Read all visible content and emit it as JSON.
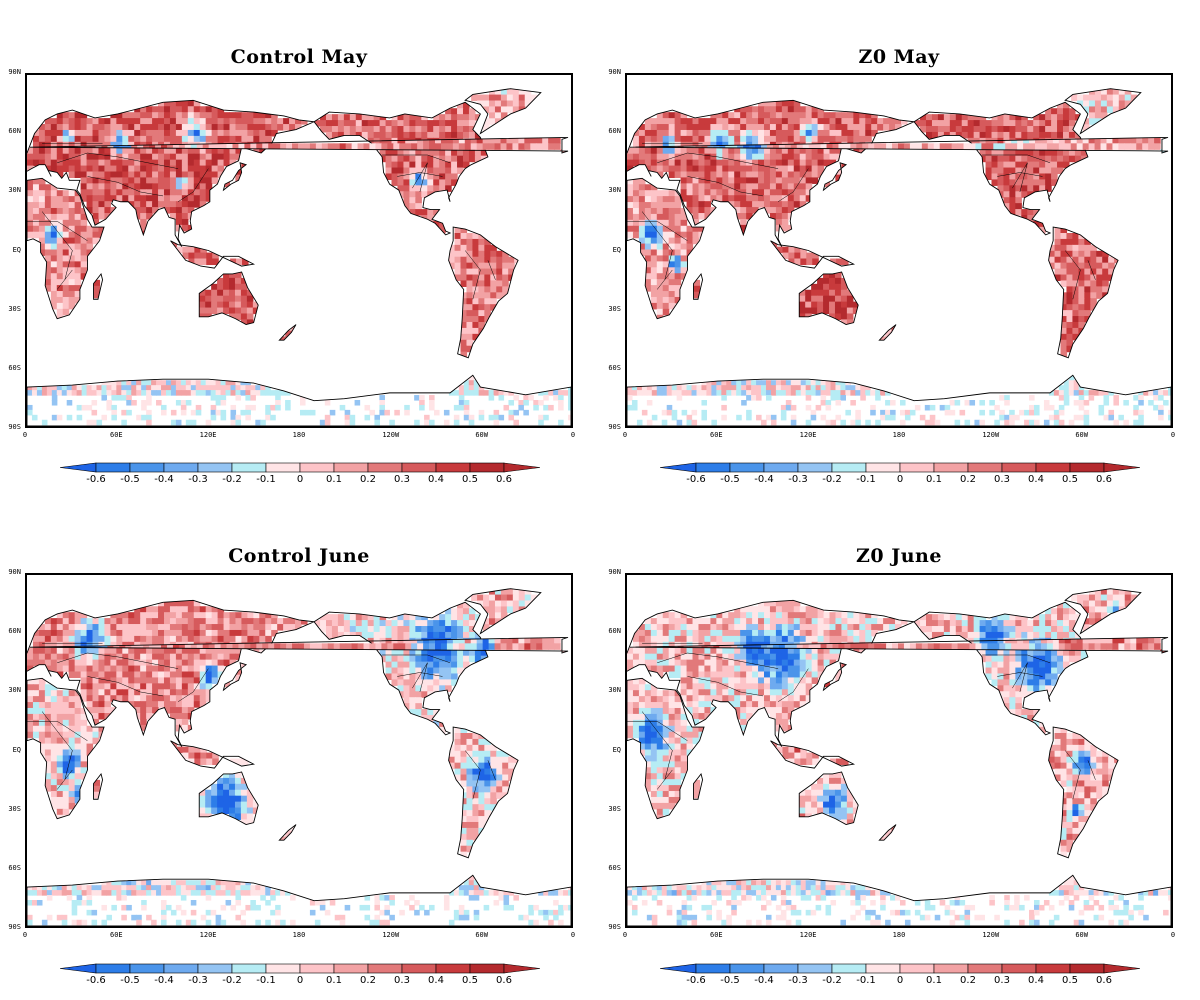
{
  "panels": [
    {
      "title": "Control May",
      "scenario": "control_may"
    },
    {
      "title": "Z0 May",
      "scenario": "z0_may"
    },
    {
      "title": "Control June",
      "scenario": "control_june"
    },
    {
      "title": "Z0 June",
      "scenario": "z0_june"
    }
  ],
  "map": {
    "projection": "cylindrical equidistant, centered on 180",
    "lat_ticks": [
      "90N",
      "60N",
      "30N",
      "EQ",
      "30S",
      "60S",
      "90S"
    ],
    "lon_ticks": [
      "0",
      "60E",
      "120E",
      "180",
      "120W",
      "60W",
      "0"
    ],
    "land_outlines": true,
    "country_borders": true
  },
  "colorbar": {
    "labels": [
      "-0.6",
      "-0.5",
      "-0.4",
      "-0.3",
      "-0.2",
      "-0.1",
      "0",
      "0.1",
      "0.2",
      "0.3",
      "0.4",
      "0.5",
      "0.6"
    ],
    "colors": [
      "#1e64e6",
      "#2d7de8",
      "#4a94ea",
      "#6eaaef",
      "#94c4f3",
      "#b6ecf4",
      "#ffe4e6",
      "#fdc4c8",
      "#f2a2a4",
      "#e2797a",
      "#d65a5c",
      "#c83a3c",
      "#b42a2e",
      "#b42a2e"
    ],
    "extend": "both",
    "range": [
      -0.6,
      0.6
    ]
  },
  "theme": {
    "frame": "#000000",
    "ocean": "#ffffff"
  }
}
